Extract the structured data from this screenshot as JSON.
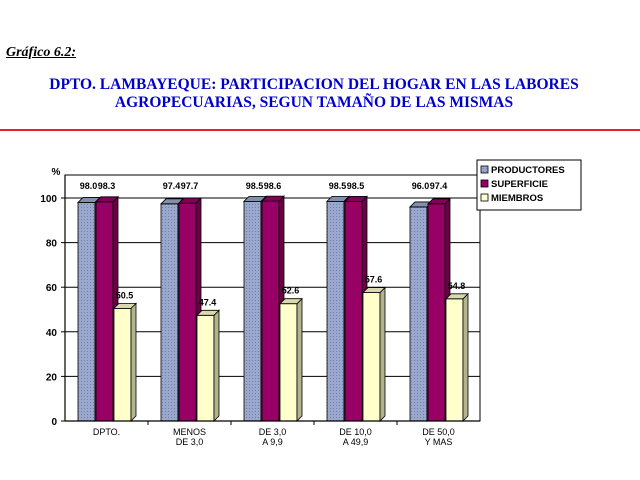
{
  "figure_label": "Gráfico 6.2:",
  "title_line1": "DPTO. LAMBAYEQUE: PARTICIPACION DEL HOGAR EN LAS LABORES",
  "title_line2": "AGROPECUARIAS, SEGUN TAMAÑO DE LAS MISMAS",
  "colors": {
    "title": "#0000cc",
    "rule": "#e8202a"
  },
  "chart_data": {
    "type": "bar",
    "title": "DPTO. LAMBAYEQUE: PARTICIPACION DEL HOGAR EN LAS LABORES AGROPECUARIAS, SEGUN TAMAÑO DE LAS MISMAS",
    "ylabel": "%",
    "xlabel": "",
    "ylim": [
      0,
      100
    ],
    "yticks": [
      0,
      20,
      40,
      60,
      80,
      100
    ],
    "grid": true,
    "legend_position": "top-right",
    "categories": [
      [
        "DPTO."
      ],
      [
        "MENOS",
        "DE 3,0"
      ],
      [
        "DE 3,0",
        "A 9,9"
      ],
      [
        "DE 10,0",
        "A 49,9"
      ],
      [
        "DE 50,0",
        "Y MAS"
      ]
    ],
    "series": [
      {
        "name": "PRODUCTORES",
        "color": "#99a8cc",
        "pattern": "dots",
        "values": [
          98.0,
          97.4,
          98.5,
          98.5,
          96.0
        ]
      },
      {
        "name": "SUPERFICIE",
        "color": "#990066",
        "pattern": "solid",
        "values": [
          98.3,
          97.7,
          98.6,
          98.5,
          97.4
        ]
      },
      {
        "name": "MIEMBROS",
        "color": "#ffffcc",
        "pattern": "solid",
        "values": [
          50.5,
          47.4,
          52.6,
          57.6,
          54.8
        ]
      }
    ],
    "data_labels": [
      [
        "98.0",
        "97.4",
        "98.5",
        "98.5",
        "96.0"
      ],
      [
        "98.3",
        "97.7",
        "98.6",
        "98.5",
        "97.4"
      ],
      [
        "50.5",
        "47.4",
        "52.6",
        "57.6",
        "54.8"
      ]
    ]
  }
}
